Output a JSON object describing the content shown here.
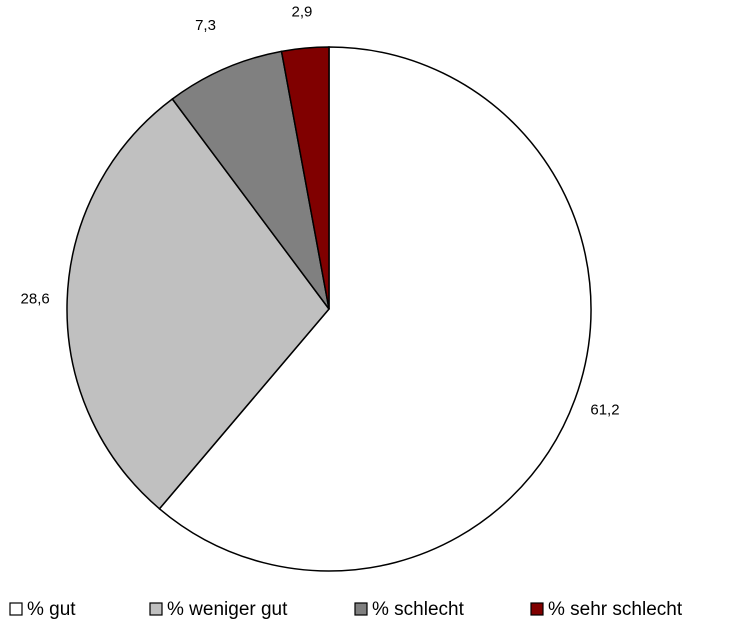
{
  "chart_data": {
    "type": "pie",
    "categories": [
      "% gut",
      "% weniger gut",
      "% schlecht",
      "% sehr schlecht"
    ],
    "values": [
      61.2,
      28.6,
      7.3,
      2.9
    ],
    "value_labels": [
      "61,2",
      "28,6",
      "7,3",
      "2,9"
    ],
    "colors": [
      "#ffffff",
      "#c0c0c0",
      "#808080",
      "#800000"
    ],
    "legend": "bottom"
  }
}
